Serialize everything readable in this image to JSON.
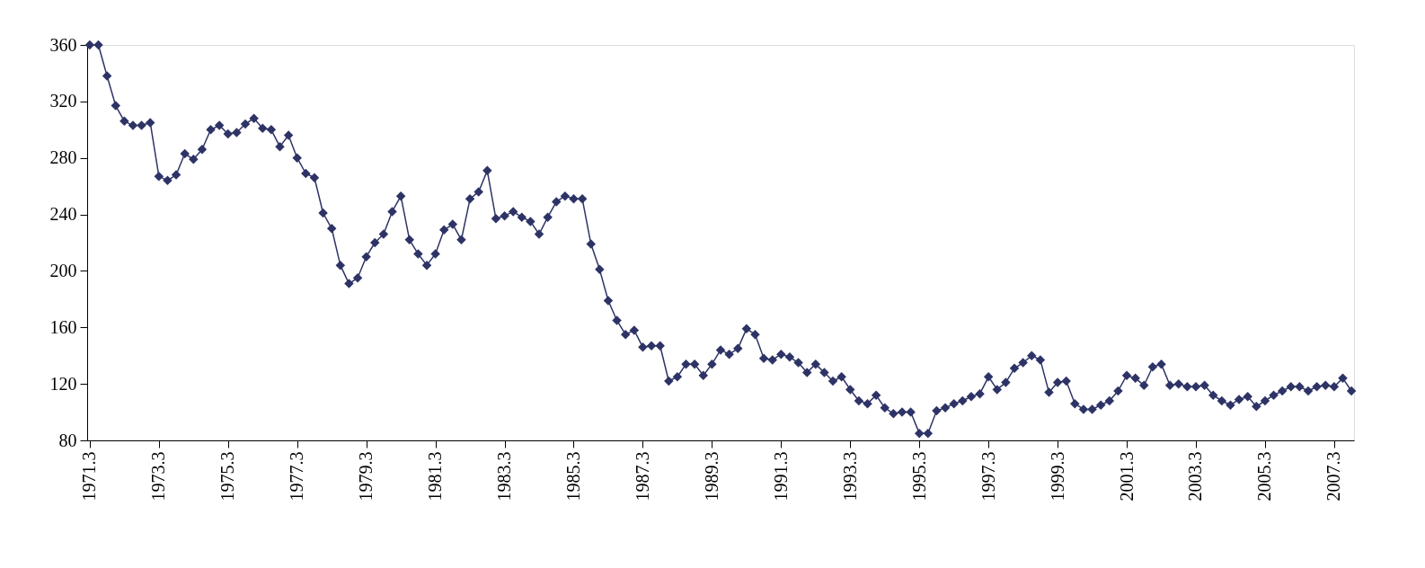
{
  "chart_data": {
    "type": "line",
    "categories": [
      "1971.3",
      null,
      null,
      null,
      null,
      null,
      null,
      null,
      "1973.3",
      null,
      null,
      null,
      null,
      null,
      null,
      null,
      "1975.3",
      null,
      null,
      null,
      null,
      null,
      null,
      null,
      "1977.3",
      null,
      null,
      null,
      null,
      null,
      null,
      null,
      "1979.3",
      null,
      null,
      null,
      null,
      null,
      null,
      null,
      "1981.3",
      null,
      null,
      null,
      null,
      null,
      null,
      null,
      "1983.3",
      null,
      null,
      null,
      null,
      null,
      null,
      null,
      "1985.3",
      null,
      null,
      null,
      null,
      null,
      null,
      null,
      "1987.3",
      null,
      null,
      null,
      null,
      null,
      null,
      null,
      "1989.3",
      null,
      null,
      null,
      null,
      null,
      null,
      null,
      "1991.3",
      null,
      null,
      null,
      null,
      null,
      null,
      null,
      "1993.3",
      null,
      null,
      null,
      null,
      null,
      null,
      null,
      "1995.3",
      null,
      null,
      null,
      null,
      null,
      null,
      null,
      "1997.3",
      null,
      null,
      null,
      null,
      null,
      null,
      null,
      "1999.3",
      null,
      null,
      null,
      null,
      null,
      null,
      null,
      "2001.3",
      null,
      null,
      null,
      null,
      null,
      null,
      null,
      "2003.3",
      null,
      null,
      null,
      null,
      null,
      null,
      null,
      "2005.3",
      null,
      null,
      null,
      null,
      null,
      null,
      null,
      "2007.3",
      null,
      null
    ],
    "series": [
      {
        "color": "#2e3366",
        "values": [
          360,
          360,
          338,
          317,
          306,
          303,
          303,
          305,
          267,
          264,
          268,
          283,
          279,
          286,
          300,
          303,
          297,
          298,
          304,
          308,
          301,
          300,
          288,
          296,
          280,
          269,
          266,
          241,
          230,
          204,
          191,
          195,
          210,
          220,
          226,
          242,
          253,
          222,
          212,
          204,
          212,
          229,
          233,
          222,
          251,
          256,
          271,
          237,
          239,
          242,
          238,
          235,
          226,
          238,
          249,
          253,
          251,
          251,
          219,
          201,
          179,
          165,
          155,
          158,
          146,
          147,
          147,
          122,
          125,
          134,
          134,
          126,
          134,
          144,
          141,
          145,
          159,
          155,
          138,
          137,
          141,
          139,
          135,
          128,
          134,
          128,
          122,
          125,
          116,
          108,
          106,
          112,
          103,
          99,
          100,
          100,
          85,
          85,
          101,
          103,
          106,
          108,
          111,
          113,
          125,
          116,
          121,
          131,
          135,
          140,
          137,
          114,
          121,
          122,
          106,
          102,
          102,
          105,
          108,
          115,
          126,
          124,
          119,
          132,
          134,
          119,
          120,
          118,
          118,
          119,
          112,
          108,
          105,
          109,
          111,
          104,
          108,
          112,
          115,
          118,
          118,
          115,
          118,
          119,
          118,
          124,
          115
        ]
      }
    ],
    "ylim": [
      80,
      360
    ],
    "yticks": [
      80,
      120,
      160,
      200,
      240,
      280,
      320,
      360
    ],
    "grid": false,
    "legend": false,
    "marker": "diamond",
    "line_style": "solid"
  }
}
